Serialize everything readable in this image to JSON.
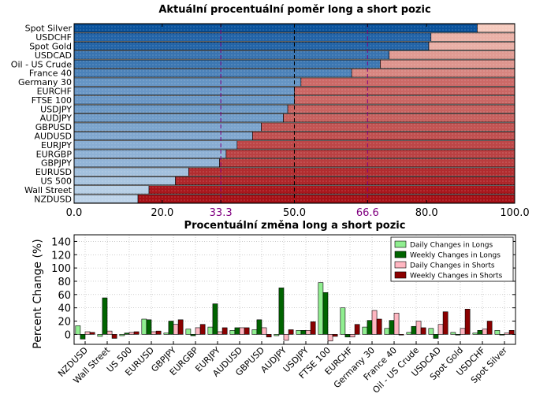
{
  "chart_data": [
    {
      "type": "bar",
      "orientation": "horizontal-stacked",
      "title": "Aktuální procentuální poměr long a short pozic",
      "categories": [
        "Spot Silver",
        "USDCHF",
        "Spot Gold",
        "USDCAD",
        "Oil - US Crude",
        "France 40",
        "Germany 30",
        "EURCHF",
        "FTSE 100",
        "USDJPY",
        "AUDJPY",
        "GBPUSD",
        "AUDUSD",
        "EURJPY",
        "EURGBP",
        "GBPJPY",
        "EURUSD",
        "US 500",
        "Wall Street",
        "NZDUSD"
      ],
      "series": [
        {
          "name": "Long",
          "values": [
            91.5,
            81.0,
            80.5,
            71.5,
            69.5,
            63.0,
            51.5,
            50.0,
            50.0,
            48.5,
            47.5,
            42.5,
            40.5,
            37.0,
            34.5,
            33.0,
            26.0,
            23.0,
            17.0,
            14.5
          ]
        },
        {
          "name": "Short",
          "values": [
            8.5,
            19.0,
            19.5,
            28.5,
            30.5,
            37.0,
            48.5,
            50.0,
            50.0,
            51.5,
            52.5,
            57.5,
            59.5,
            63.0,
            65.5,
            67.0,
            74.0,
            77.0,
            83.0,
            85.5
          ]
        }
      ],
      "xticks": [
        "0.0",
        "20.0",
        "33.3",
        "50.0",
        "66.6",
        "80.0",
        "100.0"
      ],
      "xlim": [
        0,
        100
      ],
      "reference_lines": [
        33.3,
        50.0,
        66.6
      ],
      "colors": {
        "long_dark": "#08519c",
        "long_light": "#deebf7",
        "short_light": "#fee0d2",
        "short_dark": "#a50f15",
        "line_special": "#800080",
        "line_mid": "#000000"
      }
    },
    {
      "type": "bar",
      "orientation": "vertical-grouped",
      "title": "Procentuální změna long a short pozic",
      "ylabel": "Percent Change (%)",
      "ylim": [
        -15,
        150
      ],
      "yticks": [
        "0",
        "20",
        "40",
        "60",
        "80",
        "100",
        "120",
        "140"
      ],
      "categories": [
        "NZDUSD",
        "Wall Street",
        "US 500",
        "EURUSD",
        "GBPJPY",
        "EURGBP",
        "EURJPY",
        "AUDUSD",
        "GBPUSD",
        "AUDJPY",
        "USDJPY",
        "FTSE 100",
        "EURCHF",
        "Germany 30",
        "France 40",
        "Oil - US Crude",
        "USDCAD",
        "Spot Gold",
        "USDCHF",
        "Spot Silver"
      ],
      "series": [
        {
          "name": "Daily Changes in Longs",
          "color": "#90ee90",
          "values": [
            13,
            -3,
            -2,
            23,
            2,
            8,
            11,
            6,
            7,
            -2,
            6,
            78,
            40,
            11,
            9,
            3,
            9,
            3,
            2,
            6
          ]
        },
        {
          "name": "Weekly Changes in Longs",
          "color": "#006400",
          "values": [
            -7,
            55,
            2,
            22,
            20,
            -2,
            46,
            10,
            22,
            70,
            6,
            63,
            -4,
            21,
            21,
            12,
            -6,
            -1,
            6,
            -1
          ]
        },
        {
          "name": "Daily Changes in Shorts",
          "color": "#ffb6c1",
          "values": [
            4,
            5,
            3,
            4,
            15,
            10,
            4,
            10,
            10,
            -9,
            6,
            -10,
            -4,
            36,
            32,
            20,
            15,
            9,
            8,
            2
          ]
        },
        {
          "name": "Weekly Changes in Shorts",
          "color": "#8b0000",
          "values": [
            3,
            -6,
            4,
            5,
            22,
            15,
            10,
            10,
            -4,
            7,
            19,
            -3,
            15,
            23,
            -1,
            10,
            34,
            38,
            20,
            6
          ]
        }
      ],
      "grid": true,
      "legend": "top-right"
    }
  ]
}
